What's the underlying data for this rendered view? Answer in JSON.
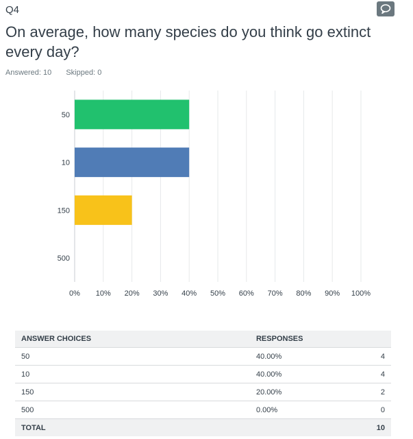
{
  "question": {
    "number": "Q4",
    "title": "On average, how many species do you think go extinct every day?",
    "answered_label": "Answered: 10",
    "skipped_label": "Skipped: 0"
  },
  "comment_icon": "comment-bubble-icon",
  "chart_data": {
    "type": "bar",
    "orientation": "horizontal",
    "categories": [
      "50",
      "10",
      "150",
      "500"
    ],
    "values": [
      40,
      40,
      20,
      0
    ],
    "colors": [
      "#21c16e",
      "#507cb6",
      "#f8c21a",
      "#ee6f56"
    ],
    "xlim": [
      0,
      100
    ],
    "xticks": [
      "0%",
      "10%",
      "20%",
      "30%",
      "40%",
      "50%",
      "60%",
      "70%",
      "80%",
      "90%",
      "100%"
    ],
    "grid": true
  },
  "table": {
    "headers": [
      "ANSWER CHOICES",
      "RESPONSES"
    ],
    "rows": [
      {
        "choice": "50",
        "percent": "40.00%",
        "count": "4"
      },
      {
        "choice": "10",
        "percent": "40.00%",
        "count": "4"
      },
      {
        "choice": "150",
        "percent": "20.00%",
        "count": "2"
      },
      {
        "choice": "500",
        "percent": "0.00%",
        "count": "0"
      }
    ],
    "total_label": "TOTAL",
    "total_count": "10"
  }
}
